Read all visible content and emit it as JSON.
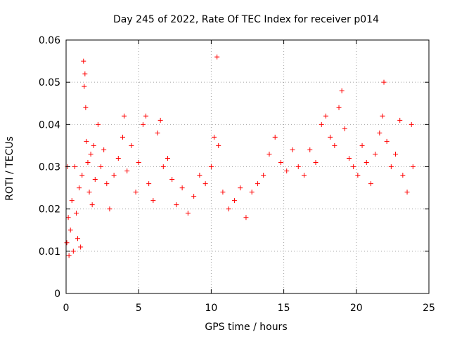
{
  "chart_data": {
    "type": "scatter",
    "title": "Day 245 of 2022, Rate Of TEC Index for receiver p014",
    "xlabel": "GPS time / hours",
    "ylabel": "ROTI / TECUs",
    "xlim": [
      0,
      25
    ],
    "ylim": [
      0,
      0.06
    ],
    "x_ticks": [
      "0",
      "5",
      "10",
      "15",
      "20",
      "25"
    ],
    "y_ticks": [
      "0",
      "0.01",
      "0.02",
      "0.03",
      "0.04",
      "0.05",
      "0.06"
    ],
    "grid": true,
    "marker": "plus",
    "color": "#ff0000",
    "series": [
      {
        "name": "ROTI",
        "points": [
          [
            0.05,
            0.012
          ],
          [
            0.1,
            0.03
          ],
          [
            0.15,
            0.018
          ],
          [
            0.2,
            0.009
          ],
          [
            0.3,
            0.015
          ],
          [
            0.4,
            0.022
          ],
          [
            0.5,
            0.01
          ],
          [
            0.6,
            0.03
          ],
          [
            0.7,
            0.019
          ],
          [
            0.8,
            0.013
          ],
          [
            0.9,
            0.025
          ],
          [
            1.0,
            0.011
          ],
          [
            1.1,
            0.028
          ],
          [
            1.2,
            0.055
          ],
          [
            1.25,
            0.049
          ],
          [
            1.3,
            0.052
          ],
          [
            1.35,
            0.044
          ],
          [
            1.4,
            0.036
          ],
          [
            1.5,
            0.031
          ],
          [
            1.6,
            0.024
          ],
          [
            1.7,
            0.033
          ],
          [
            1.8,
            0.021
          ],
          [
            1.9,
            0.035
          ],
          [
            2.0,
            0.027
          ],
          [
            2.2,
            0.04
          ],
          [
            2.4,
            0.03
          ],
          [
            2.6,
            0.034
          ],
          [
            2.8,
            0.026
          ],
          [
            3.0,
            0.02
          ],
          [
            3.3,
            0.028
          ],
          [
            3.6,
            0.032
          ],
          [
            3.9,
            0.037
          ],
          [
            4.0,
            0.042
          ],
          [
            4.2,
            0.029
          ],
          [
            4.5,
            0.035
          ],
          [
            4.8,
            0.024
          ],
          [
            5.0,
            0.031
          ],
          [
            5.3,
            0.04
          ],
          [
            5.5,
            0.042
          ],
          [
            5.7,
            0.026
          ],
          [
            6.0,
            0.022
          ],
          [
            6.3,
            0.038
          ],
          [
            6.5,
            0.041
          ],
          [
            6.7,
            0.03
          ],
          [
            7.0,
            0.032
          ],
          [
            7.3,
            0.027
          ],
          [
            7.6,
            0.021
          ],
          [
            8.0,
            0.025
          ],
          [
            8.4,
            0.019
          ],
          [
            8.8,
            0.023
          ],
          [
            9.2,
            0.028
          ],
          [
            9.6,
            0.026
          ],
          [
            10.0,
            0.03
          ],
          [
            10.2,
            0.037
          ],
          [
            10.4,
            0.056
          ],
          [
            10.5,
            0.035
          ],
          [
            10.8,
            0.024
          ],
          [
            11.2,
            0.02
          ],
          [
            11.6,
            0.022
          ],
          [
            12.0,
            0.025
          ],
          [
            12.4,
            0.018
          ],
          [
            12.8,
            0.024
          ],
          [
            13.2,
            0.026
          ],
          [
            13.6,
            0.028
          ],
          [
            14.0,
            0.033
          ],
          [
            14.4,
            0.037
          ],
          [
            14.8,
            0.031
          ],
          [
            15.2,
            0.029
          ],
          [
            15.6,
            0.034
          ],
          [
            16.0,
            0.03
          ],
          [
            16.4,
            0.028
          ],
          [
            16.8,
            0.034
          ],
          [
            17.2,
            0.031
          ],
          [
            17.6,
            0.04
          ],
          [
            17.9,
            0.042
          ],
          [
            18.2,
            0.037
          ],
          [
            18.5,
            0.035
          ],
          [
            18.8,
            0.044
          ],
          [
            19.0,
            0.048
          ],
          [
            19.2,
            0.039
          ],
          [
            19.5,
            0.032
          ],
          [
            19.8,
            0.03
          ],
          [
            20.1,
            0.028
          ],
          [
            20.4,
            0.035
          ],
          [
            20.7,
            0.031
          ],
          [
            21.0,
            0.026
          ],
          [
            21.3,
            0.033
          ],
          [
            21.6,
            0.038
          ],
          [
            21.8,
            0.042
          ],
          [
            21.9,
            0.05
          ],
          [
            22.1,
            0.036
          ],
          [
            22.4,
            0.03
          ],
          [
            22.7,
            0.033
          ],
          [
            23.0,
            0.041
          ],
          [
            23.2,
            0.028
          ],
          [
            23.5,
            0.024
          ],
          [
            23.8,
            0.04
          ],
          [
            23.9,
            0.03
          ]
        ]
      }
    ]
  }
}
